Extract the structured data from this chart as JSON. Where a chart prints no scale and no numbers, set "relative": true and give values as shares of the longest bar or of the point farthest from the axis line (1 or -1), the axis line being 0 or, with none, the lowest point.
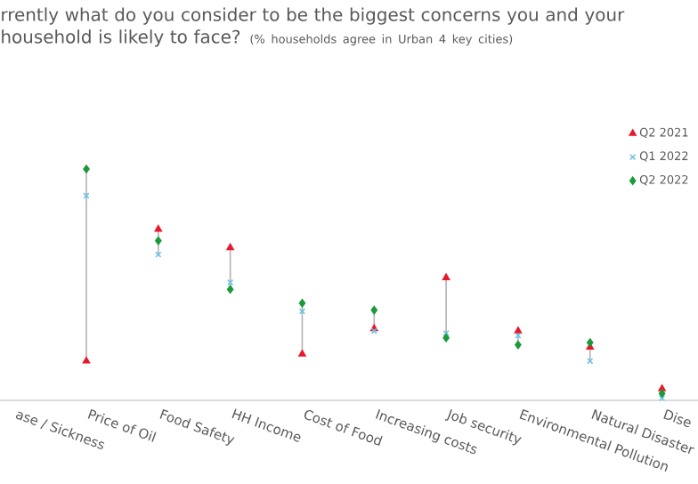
{
  "chart_data": {
    "type": "scatter",
    "relative": true,
    "legend": "top right",
    "title": "rrently what do you consider to be the biggest concerns you and your household is likely to face?",
    "subtitle": "(% households agree in Urban 4 key cities)",
    "categories": [
      "ase / Sickness",
      "Price of Oil",
      "Food Safety",
      "HH Income",
      "Cost of Food",
      "Increasing costs",
      "Job security",
      "Environmental Pollution",
      "Natural Disaster",
      "Dise"
    ],
    "series": [
      {
        "name": "Q2 2021",
        "color": "#e8192c",
        "marker": "triangle",
        "values": [
          null,
          0.17,
          0.74,
          0.66,
          0.2,
          0.31,
          0.53,
          0.3,
          0.23,
          0.05
        ]
      },
      {
        "name": "Q1 2022",
        "color": "#6ec1e4",
        "marker": "cross",
        "values": [
          null,
          0.885,
          0.63,
          0.51,
          0.385,
          0.3,
          0.29,
          0.28,
          0.17,
          0.01
        ]
      },
      {
        "name": "Q2 2022",
        "color": "#1a9a3a",
        "marker": "diamond",
        "values": [
          null,
          1.0,
          0.69,
          0.48,
          0.42,
          0.39,
          0.27,
          0.24,
          0.25,
          0.03
        ]
      }
    ]
  }
}
